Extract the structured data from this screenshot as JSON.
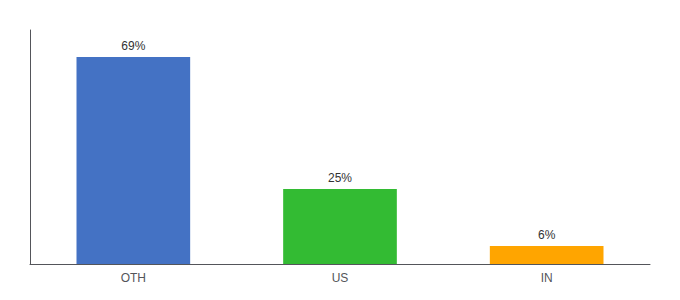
{
  "chart_data": {
    "type": "bar",
    "categories": [
      "OTH",
      "US",
      "IN"
    ],
    "values": [
      69,
      25,
      6
    ],
    "value_labels": [
      "69%",
      "25%",
      "6%"
    ],
    "colors": [
      "#4472C4",
      "#33BB33",
      "#FFA500"
    ],
    "ylim": [
      0,
      78
    ],
    "grid": false,
    "data_labels": true,
    "tick_labels": "x"
  }
}
